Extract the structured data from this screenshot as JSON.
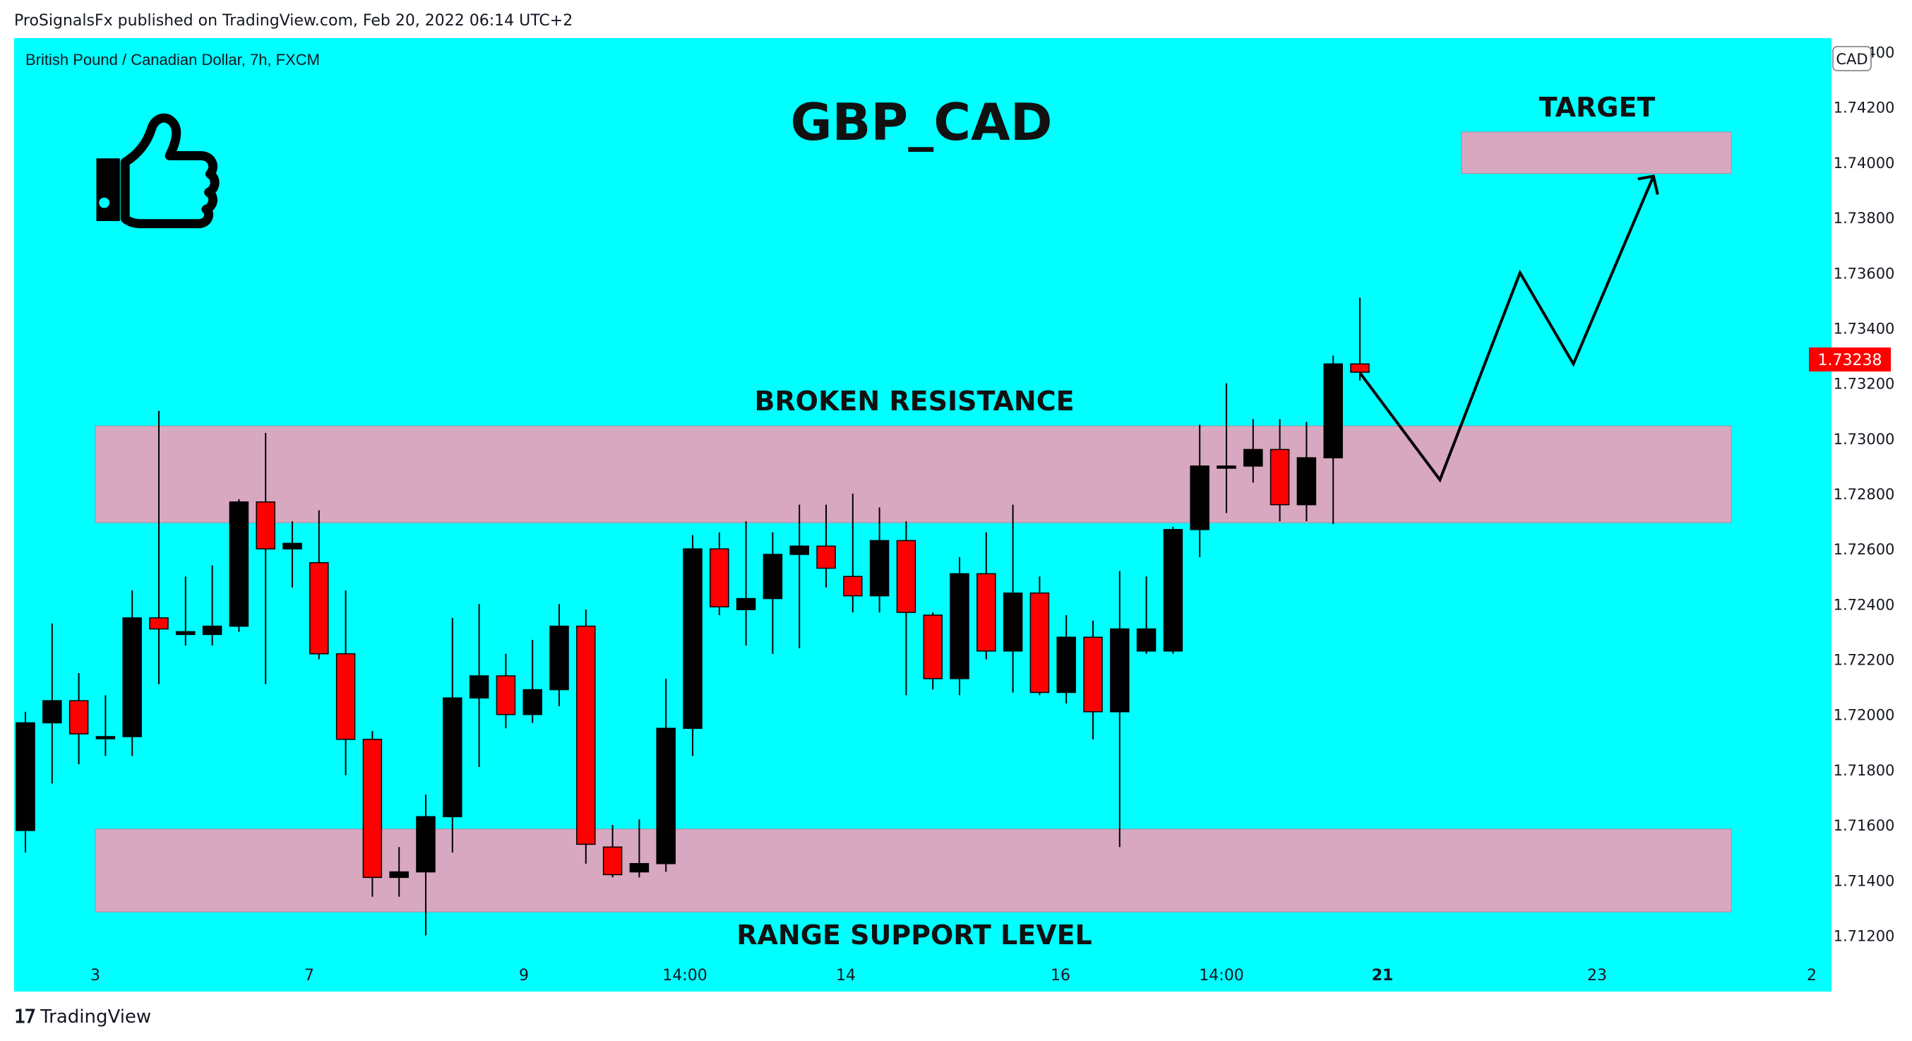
{
  "header": {
    "published_text": "ProSignalsFx published on TradingView.com, Feb 20, 2022 06:14 UTC+2"
  },
  "footer": {
    "logo_text": "TradingView"
  },
  "colors": {
    "background": "#00FFFF",
    "up_candle": "#000000",
    "down_candle": "#FF0000",
    "zone": "#D8A7C0",
    "price_tag": "#FF0000"
  },
  "chart_data": {
    "type": "candlestick",
    "symbol_label": "British Pound / Canadian Dollar, 7h, FXCM",
    "title": "GBP_CAD",
    "currency_badge": "CAD",
    "last_price": "1.73238",
    "ylim": [
      1.7115,
      1.7445
    ],
    "y_ticks": [
      "1.74400",
      "1.74200",
      "1.74000",
      "1.73800",
      "1.73600",
      "1.73400",
      "1.73200",
      "1.73000",
      "1.72800",
      "1.72600",
      "1.72400",
      "1.72200",
      "1.72000",
      "1.71800",
      "1.71600",
      "1.71400",
      "1.71200"
    ],
    "x_ticks": [
      "3",
      "7",
      "9",
      "14:00",
      "14",
      "16",
      "14:00",
      "21",
      "23",
      "2"
    ],
    "candles": [
      {
        "o": 1.7158,
        "h": 1.7201,
        "l": 1.715,
        "c": 1.7197
      },
      {
        "o": 1.7197,
        "h": 1.7233,
        "l": 1.7175,
        "c": 1.7205
      },
      {
        "o": 1.7205,
        "h": 1.7215,
        "l": 1.7182,
        "c": 1.7193
      },
      {
        "o": 1.7192,
        "h": 1.7207,
        "l": 1.7185,
        "c": 1.7192
      },
      {
        "o": 1.7192,
        "h": 1.7245,
        "l": 1.7185,
        "c": 1.7235
      },
      {
        "o": 1.7235,
        "h": 1.731,
        "l": 1.7211,
        "c": 1.7231
      },
      {
        "o": 1.7229,
        "h": 1.725,
        "l": 1.7225,
        "c": 1.723
      },
      {
        "o": 1.7229,
        "h": 1.7254,
        "l": 1.7225,
        "c": 1.7232
      },
      {
        "o": 1.7232,
        "h": 1.7278,
        "l": 1.723,
        "c": 1.7277
      },
      {
        "o": 1.7277,
        "h": 1.7302,
        "l": 1.7211,
        "c": 1.726
      },
      {
        "o": 1.726,
        "h": 1.727,
        "l": 1.7246,
        "c": 1.7262
      },
      {
        "o": 1.7255,
        "h": 1.7274,
        "l": 1.722,
        "c": 1.7222
      },
      {
        "o": 1.7222,
        "h": 1.7245,
        "l": 1.7178,
        "c": 1.7191
      },
      {
        "o": 1.7191,
        "h": 1.7194,
        "l": 1.7134,
        "c": 1.7141
      },
      {
        "o": 1.7141,
        "h": 1.7152,
        "l": 1.7134,
        "c": 1.7143
      },
      {
        "o": 1.7143,
        "h": 1.7171,
        "l": 1.712,
        "c": 1.7163
      },
      {
        "o": 1.7163,
        "h": 1.7235,
        "l": 1.715,
        "c": 1.7206
      },
      {
        "o": 1.7206,
        "h": 1.724,
        "l": 1.7181,
        "c": 1.7214
      },
      {
        "o": 1.7214,
        "h": 1.7222,
        "l": 1.7195,
        "c": 1.72
      },
      {
        "o": 1.72,
        "h": 1.7227,
        "l": 1.7197,
        "c": 1.7209
      },
      {
        "o": 1.7209,
        "h": 1.724,
        "l": 1.7203,
        "c": 1.7232
      },
      {
        "o": 1.7232,
        "h": 1.7238,
        "l": 1.7146,
        "c": 1.7153
      },
      {
        "o": 1.7152,
        "h": 1.716,
        "l": 1.7141,
        "c": 1.7142
      },
      {
        "o": 1.7143,
        "h": 1.7162,
        "l": 1.7141,
        "c": 1.7146
      },
      {
        "o": 1.7146,
        "h": 1.7213,
        "l": 1.7143,
        "c": 1.7195
      },
      {
        "o": 1.7195,
        "h": 1.7265,
        "l": 1.7185,
        "c": 1.726
      },
      {
        "o": 1.726,
        "h": 1.7266,
        "l": 1.7236,
        "c": 1.7239
      },
      {
        "o": 1.7238,
        "h": 1.727,
        "l": 1.7225,
        "c": 1.7242
      },
      {
        "o": 1.7242,
        "h": 1.7266,
        "l": 1.7222,
        "c": 1.7258
      },
      {
        "o": 1.7258,
        "h": 1.7276,
        "l": 1.7224,
        "c": 1.7261
      },
      {
        "o": 1.7261,
        "h": 1.7276,
        "l": 1.7246,
        "c": 1.7253
      },
      {
        "o": 1.725,
        "h": 1.728,
        "l": 1.7237,
        "c": 1.7243
      },
      {
        "o": 1.7243,
        "h": 1.7275,
        "l": 1.7237,
        "c": 1.7263
      },
      {
        "o": 1.7263,
        "h": 1.727,
        "l": 1.7207,
        "c": 1.7237
      },
      {
        "o": 1.7236,
        "h": 1.7237,
        "l": 1.7209,
        "c": 1.7213
      },
      {
        "o": 1.7213,
        "h": 1.7257,
        "l": 1.7207,
        "c": 1.7251
      },
      {
        "o": 1.7251,
        "h": 1.7266,
        "l": 1.722,
        "c": 1.7223
      },
      {
        "o": 1.7223,
        "h": 1.7276,
        "l": 1.7208,
        "c": 1.7244
      },
      {
        "o": 1.7244,
        "h": 1.725,
        "l": 1.7207,
        "c": 1.7208
      },
      {
        "o": 1.7208,
        "h": 1.7236,
        "l": 1.7204,
        "c": 1.7228
      },
      {
        "o": 1.7228,
        "h": 1.7234,
        "l": 1.7191,
        "c": 1.7201
      },
      {
        "o": 1.7201,
        "h": 1.7252,
        "l": 1.7152,
        "c": 1.7231
      },
      {
        "o": 1.7223,
        "h": 1.725,
        "l": 1.7222,
        "c": 1.7231
      },
      {
        "o": 1.7223,
        "h": 1.7268,
        "l": 1.7222,
        "c": 1.7267
      },
      {
        "o": 1.7267,
        "h": 1.7305,
        "l": 1.7257,
        "c": 1.729
      },
      {
        "o": 1.729,
        "h": 1.732,
        "l": 1.7273,
        "c": 1.729
      },
      {
        "o": 1.729,
        "h": 1.7307,
        "l": 1.7284,
        "c": 1.7296
      },
      {
        "o": 1.7296,
        "h": 1.7307,
        "l": 1.727,
        "c": 1.7276
      },
      {
        "o": 1.7276,
        "h": 1.7306,
        "l": 1.727,
        "c": 1.7293
      },
      {
        "o": 1.7293,
        "h": 1.733,
        "l": 1.7269,
        "c": 1.7327
      },
      {
        "o": 1.7327,
        "h": 1.7351,
        "l": 1.7321,
        "c": 1.7324
      }
    ],
    "zones": [
      {
        "label": "BROKEN RESISTANCE",
        "top": 1.73045,
        "bottom": 1.72695,
        "label_position": "above"
      },
      {
        "label": "RANGE SUPPORT LEVEL",
        "top": 1.71585,
        "bottom": 1.71285,
        "label_position": "below"
      },
      {
        "label": "TARGET",
        "top": 1.7411,
        "bottom": 1.7396,
        "label_position": "above"
      }
    ],
    "projection_path": [
      {
        "bar": 50,
        "y": 1.73238
      },
      {
        "bar": 53,
        "y": 1.7285
      },
      {
        "bar": 56,
        "y": 1.736
      },
      {
        "bar": 58,
        "y": 1.7327
      },
      {
        "bar": 61,
        "y": 1.7395
      }
    ],
    "thumb_icon": "thumbs-up-icon"
  }
}
